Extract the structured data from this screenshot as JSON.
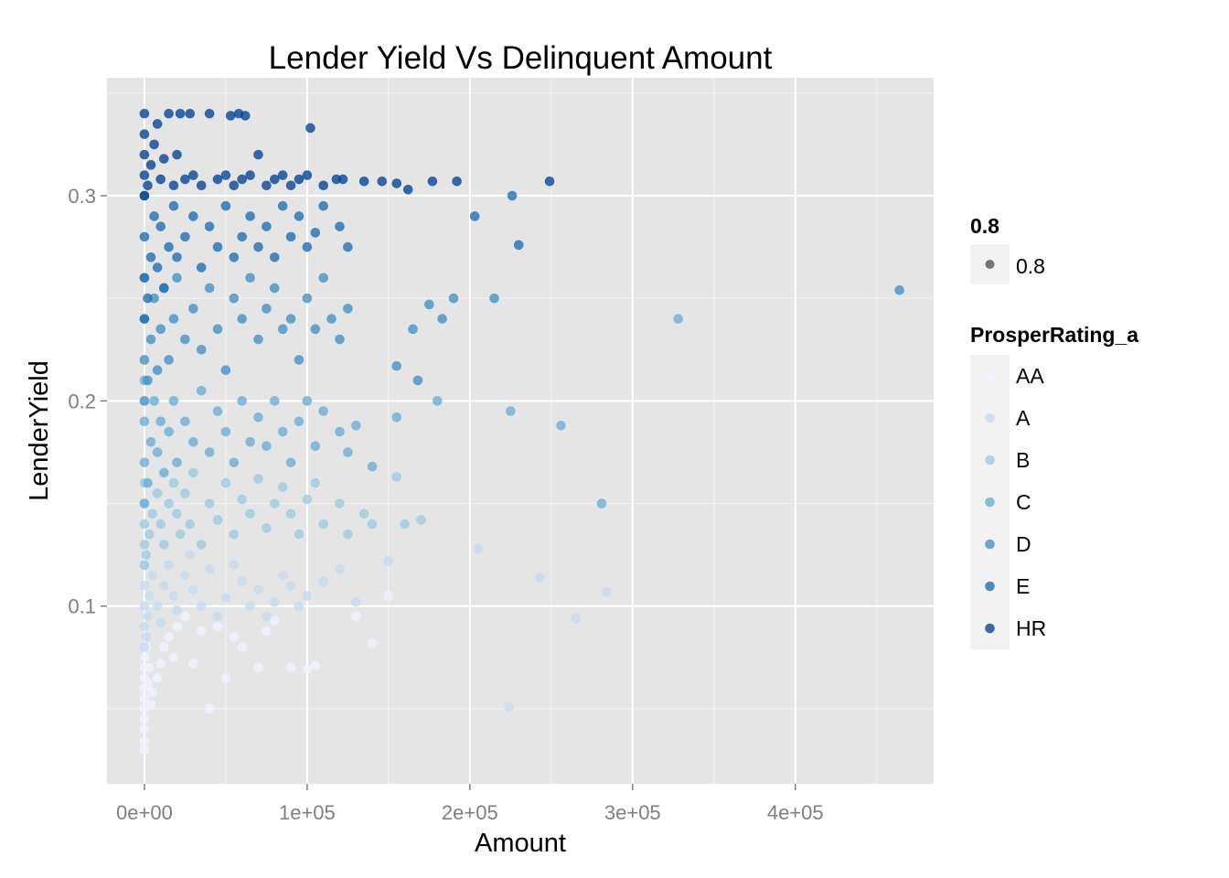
{
  "chart_data": {
    "type": "scatter",
    "title": "Lender Yield Vs Delinquent Amount",
    "xlabel": "Amount",
    "ylabel": "LenderYield",
    "xlim": [
      -23000,
      485000
    ],
    "ylim": [
      0.0134,
      0.3575
    ],
    "x_ticks": [
      0,
      100000,
      200000,
      300000,
      400000
    ],
    "x_tick_labels": [
      "0e+00",
      "1e+05",
      "2e+05",
      "3e+05",
      "4e+05"
    ],
    "y_ticks": [
      0.1,
      0.2,
      0.3
    ],
    "y_tick_labels": [
      "0.1",
      "0.2",
      "0.3"
    ],
    "grid": true,
    "legend_position": "right",
    "alpha_legend": {
      "title": "0.8",
      "label": "0.8",
      "color": "#555555"
    },
    "legend": {
      "title": "ProsperRating_a",
      "entries": [
        {
          "label": "AA",
          "color": "#eff3ff"
        },
        {
          "label": "A",
          "color": "#c6dbef"
        },
        {
          "label": "B",
          "color": "#9ecae1"
        },
        {
          "label": "C",
          "color": "#6baed6"
        },
        {
          "label": "D",
          "color": "#4292c6"
        },
        {
          "label": "E",
          "color": "#2171b5"
        },
        {
          "label": "HR",
          "color": "#084594"
        }
      ]
    },
    "series": [
      {
        "name": "AA",
        "points": [
          [
            0,
            0.03
          ],
          [
            0,
            0.034
          ],
          [
            0,
            0.04
          ],
          [
            0,
            0.045
          ],
          [
            0,
            0.05
          ],
          [
            0,
            0.055
          ],
          [
            0,
            0.06
          ],
          [
            0,
            0.065
          ],
          [
            0,
            0.07
          ],
          [
            500,
            0.075
          ],
          [
            1000,
            0.08
          ],
          [
            2000,
            0.062
          ],
          [
            3000,
            0.07
          ],
          [
            4000,
            0.052
          ],
          [
            5000,
            0.058
          ],
          [
            8000,
            0.065
          ],
          [
            10000,
            0.072
          ],
          [
            12000,
            0.08
          ],
          [
            15000,
            0.085
          ],
          [
            18000,
            0.075
          ],
          [
            20000,
            0.09
          ],
          [
            25000,
            0.095
          ],
          [
            30000,
            0.072
          ],
          [
            35000,
            0.088
          ],
          [
            40000,
            0.05
          ],
          [
            45000,
            0.09
          ],
          [
            50000,
            0.065
          ],
          [
            55000,
            0.085
          ],
          [
            60000,
            0.08
          ],
          [
            70000,
            0.07
          ],
          [
            75000,
            0.088
          ],
          [
            80000,
            0.093
          ],
          [
            90000,
            0.07
          ],
          [
            100000,
            0.069
          ],
          [
            105000,
            0.071
          ],
          [
            130000,
            0.095
          ],
          [
            140000,
            0.082
          ],
          [
            150000,
            0.105
          ]
        ]
      },
      {
        "name": "A",
        "points": [
          [
            0,
            0.08
          ],
          [
            0,
            0.09
          ],
          [
            0,
            0.1
          ],
          [
            0,
            0.11
          ],
          [
            0,
            0.12
          ],
          [
            1000,
            0.085
          ],
          [
            2000,
            0.095
          ],
          [
            3000,
            0.105
          ],
          [
            5000,
            0.115
          ],
          [
            8000,
            0.1
          ],
          [
            10000,
            0.092
          ],
          [
            12000,
            0.11
          ],
          [
            15000,
            0.12
          ],
          [
            18000,
            0.105
          ],
          [
            20000,
            0.098
          ],
          [
            25000,
            0.115
          ],
          [
            28000,
            0.125
          ],
          [
            30000,
            0.108
          ],
          [
            35000,
            0.1
          ],
          [
            40000,
            0.118
          ],
          [
            45000,
            0.095
          ],
          [
            50000,
            0.104
          ],
          [
            55000,
            0.12
          ],
          [
            60000,
            0.112
          ],
          [
            65000,
            0.1
          ],
          [
            70000,
            0.108
          ],
          [
            75000,
            0.095
          ],
          [
            80000,
            0.102
          ],
          [
            85000,
            0.115
          ],
          [
            90000,
            0.11
          ],
          [
            95000,
            0.1
          ],
          [
            100000,
            0.105
          ],
          [
            110000,
            0.112
          ],
          [
            120000,
            0.118
          ],
          [
            130000,
            0.102
          ],
          [
            150000,
            0.122
          ],
          [
            205000,
            0.128
          ],
          [
            224000,
            0.051
          ],
          [
            243000,
            0.114
          ],
          [
            265000,
            0.094
          ],
          [
            284000,
            0.107
          ]
        ]
      },
      {
        "name": "B",
        "points": [
          [
            0,
            0.12
          ],
          [
            0,
            0.13
          ],
          [
            0,
            0.14
          ],
          [
            0,
            0.15
          ],
          [
            0,
            0.16
          ],
          [
            1000,
            0.125
          ],
          [
            3000,
            0.135
          ],
          [
            5000,
            0.145
          ],
          [
            8000,
            0.155
          ],
          [
            10000,
            0.14
          ],
          [
            12000,
            0.13
          ],
          [
            15000,
            0.15
          ],
          [
            18000,
            0.16
          ],
          [
            20000,
            0.145
          ],
          [
            22000,
            0.135
          ],
          [
            25000,
            0.155
          ],
          [
            28000,
            0.14
          ],
          [
            30000,
            0.165
          ],
          [
            35000,
            0.13
          ],
          [
            40000,
            0.15
          ],
          [
            45000,
            0.142
          ],
          [
            50000,
            0.16
          ],
          [
            55000,
            0.135
          ],
          [
            60000,
            0.152
          ],
          [
            65000,
            0.145
          ],
          [
            70000,
            0.162
          ],
          [
            75000,
            0.138
          ],
          [
            80000,
            0.15
          ],
          [
            85000,
            0.158
          ],
          [
            90000,
            0.145
          ],
          [
            95000,
            0.135
          ],
          [
            100000,
            0.152
          ],
          [
            105000,
            0.16
          ],
          [
            110000,
            0.14
          ],
          [
            120000,
            0.15
          ],
          [
            125000,
            0.135
          ],
          [
            135000,
            0.145
          ],
          [
            140000,
            0.14
          ],
          [
            155000,
            0.163
          ],
          [
            160000,
            0.14
          ],
          [
            170000,
            0.142
          ]
        ]
      },
      {
        "name": "C",
        "points": [
          [
            0,
            0.15
          ],
          [
            0,
            0.17
          ],
          [
            0,
            0.19
          ],
          [
            0,
            0.21
          ],
          [
            2000,
            0.16
          ],
          [
            4000,
            0.18
          ],
          [
            6000,
            0.2
          ],
          [
            8000,
            0.175
          ],
          [
            10000,
            0.19
          ],
          [
            12000,
            0.165
          ],
          [
            15000,
            0.185
          ],
          [
            18000,
            0.2
          ],
          [
            20000,
            0.17
          ],
          [
            25000,
            0.19
          ],
          [
            30000,
            0.18
          ],
          [
            35000,
            0.205
          ],
          [
            40000,
            0.175
          ],
          [
            45000,
            0.195
          ],
          [
            50000,
            0.185
          ],
          [
            55000,
            0.17
          ],
          [
            60000,
            0.2
          ],
          [
            65000,
            0.18
          ],
          [
            70000,
            0.192
          ],
          [
            75000,
            0.178
          ],
          [
            80000,
            0.2
          ],
          [
            85000,
            0.185
          ],
          [
            90000,
            0.17
          ],
          [
            95000,
            0.19
          ],
          [
            100000,
            0.2
          ],
          [
            105000,
            0.178
          ],
          [
            110000,
            0.195
          ],
          [
            120000,
            0.185
          ],
          [
            125000,
            0.175
          ],
          [
            130000,
            0.188
          ],
          [
            140000,
            0.168
          ],
          [
            155000,
            0.192
          ],
          [
            180000,
            0.2
          ],
          [
            225000,
            0.195
          ],
          [
            256000,
            0.188
          ],
          [
            281000,
            0.15
          ],
          [
            328000,
            0.24
          ]
        ]
      },
      {
        "name": "D",
        "points": [
          [
            0,
            0.2
          ],
          [
            0,
            0.22
          ],
          [
            0,
            0.24
          ],
          [
            0,
            0.26
          ],
          [
            2000,
            0.21
          ],
          [
            4000,
            0.23
          ],
          [
            6000,
            0.25
          ],
          [
            8000,
            0.215
          ],
          [
            10000,
            0.235
          ],
          [
            12000,
            0.255
          ],
          [
            15000,
            0.22
          ],
          [
            18000,
            0.24
          ],
          [
            20000,
            0.26
          ],
          [
            25000,
            0.23
          ],
          [
            30000,
            0.245
          ],
          [
            35000,
            0.225
          ],
          [
            40000,
            0.255
          ],
          [
            45000,
            0.235
          ],
          [
            50000,
            0.215
          ],
          [
            55000,
            0.25
          ],
          [
            60000,
            0.24
          ],
          [
            65000,
            0.26
          ],
          [
            70000,
            0.23
          ],
          [
            75000,
            0.245
          ],
          [
            80000,
            0.255
          ],
          [
            85000,
            0.235
          ],
          [
            90000,
            0.24
          ],
          [
            95000,
            0.22
          ],
          [
            100000,
            0.25
          ],
          [
            105000,
            0.235
          ],
          [
            110000,
            0.26
          ],
          [
            115000,
            0.24
          ],
          [
            120000,
            0.23
          ],
          [
            125000,
            0.245
          ],
          [
            155000,
            0.217
          ],
          [
            165000,
            0.235
          ],
          [
            168000,
            0.21
          ],
          [
            175000,
            0.247
          ],
          [
            183000,
            0.24
          ],
          [
            190000,
            0.25
          ],
          [
            215000,
            0.25
          ],
          [
            464000,
            0.254
          ]
        ]
      },
      {
        "name": "E",
        "points": [
          [
            0,
            0.24
          ],
          [
            0,
            0.26
          ],
          [
            0,
            0.28
          ],
          [
            0,
            0.3
          ],
          [
            2000,
            0.25
          ],
          [
            4000,
            0.27
          ],
          [
            6000,
            0.29
          ],
          [
            8000,
            0.265
          ],
          [
            10000,
            0.285
          ],
          [
            12000,
            0.255
          ],
          [
            15000,
            0.275
          ],
          [
            18000,
            0.295
          ],
          [
            20000,
            0.27
          ],
          [
            25000,
            0.28
          ],
          [
            30000,
            0.29
          ],
          [
            35000,
            0.265
          ],
          [
            40000,
            0.285
          ],
          [
            45000,
            0.275
          ],
          [
            50000,
            0.295
          ],
          [
            55000,
            0.27
          ],
          [
            60000,
            0.28
          ],
          [
            65000,
            0.29
          ],
          [
            70000,
            0.275
          ],
          [
            75000,
            0.285
          ],
          [
            80000,
            0.27
          ],
          [
            85000,
            0.295
          ],
          [
            90000,
            0.28
          ],
          [
            95000,
            0.29
          ],
          [
            100000,
            0.275
          ],
          [
            105000,
            0.282
          ],
          [
            110000,
            0.295
          ],
          [
            120000,
            0.285
          ],
          [
            125000,
            0.275
          ],
          [
            203000,
            0.29
          ],
          [
            226000,
            0.3
          ],
          [
            230000,
            0.276
          ]
        ]
      },
      {
        "name": "HR",
        "points": [
          [
            0,
            0.3
          ],
          [
            0,
            0.31
          ],
          [
            0,
            0.32
          ],
          [
            0,
            0.33
          ],
          [
            0,
            0.34
          ],
          [
            2000,
            0.305
          ],
          [
            4000,
            0.315
          ],
          [
            6000,
            0.325
          ],
          [
            8000,
            0.335
          ],
          [
            10000,
            0.308
          ],
          [
            12000,
            0.318
          ],
          [
            15000,
            0.34
          ],
          [
            18000,
            0.305
          ],
          [
            20000,
            0.32
          ],
          [
            22000,
            0.34
          ],
          [
            25000,
            0.308
          ],
          [
            28000,
            0.34
          ],
          [
            30000,
            0.31
          ],
          [
            35000,
            0.305
          ],
          [
            40000,
            0.34
          ],
          [
            45000,
            0.308
          ],
          [
            50000,
            0.31
          ],
          [
            53000,
            0.339
          ],
          [
            55000,
            0.305
          ],
          [
            58000,
            0.34
          ],
          [
            60000,
            0.308
          ],
          [
            62000,
            0.339
          ],
          [
            65000,
            0.31
          ],
          [
            70000,
            0.32
          ],
          [
            75000,
            0.305
          ],
          [
            80000,
            0.308
          ],
          [
            85000,
            0.31
          ],
          [
            90000,
            0.305
          ],
          [
            95000,
            0.308
          ],
          [
            100000,
            0.31
          ],
          [
            102000,
            0.333
          ],
          [
            110000,
            0.305
          ],
          [
            118000,
            0.308
          ],
          [
            122000,
            0.308
          ],
          [
            135000,
            0.307
          ],
          [
            146000,
            0.307
          ],
          [
            155000,
            0.306
          ],
          [
            162000,
            0.303
          ],
          [
            177000,
            0.307
          ],
          [
            192000,
            0.307
          ],
          [
            249000,
            0.307
          ]
        ]
      }
    ]
  }
}
